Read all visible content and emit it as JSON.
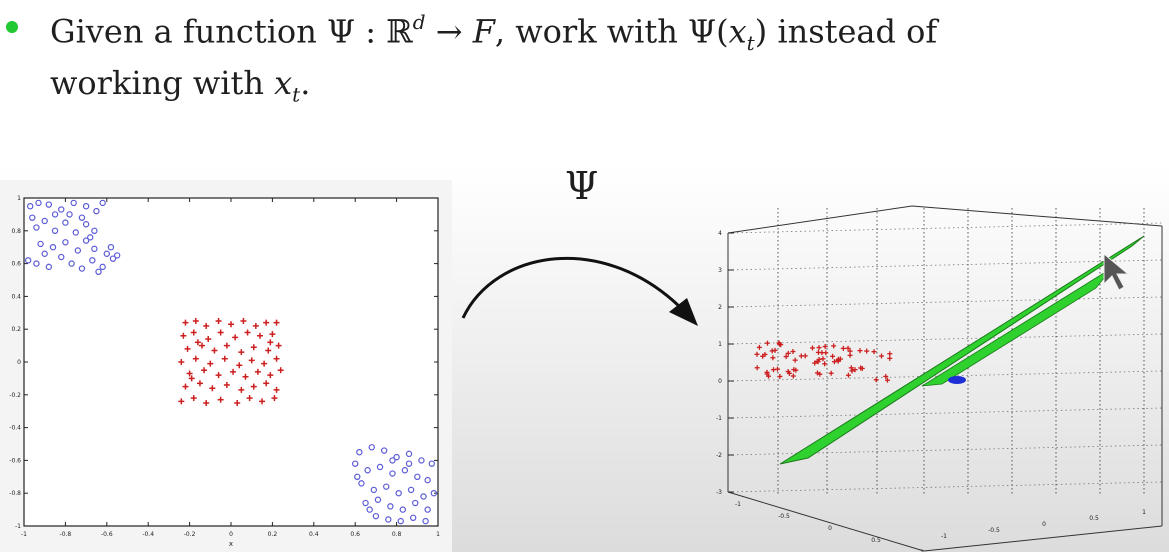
{
  "bullet": {
    "color": "#22c832",
    "line1": {
      "t1": "Given a function ",
      "psi": "Ψ",
      "t2": " : ",
      "R": "ℝ",
      "d": "d",
      "arrow": " → ",
      "F": "F",
      "t3": ", work with ",
      "psi2": "Ψ(",
      "x": "x",
      "t": "t",
      "close": ")",
      "t4": " instead of"
    },
    "line2": {
      "t1": "working with ",
      "x": "x",
      "t": "t",
      "dot": "."
    }
  },
  "mapping_label": "Ψ",
  "chart_data": [
    {
      "type": "scatter",
      "xlim": [
        -1,
        1
      ],
      "ylim": [
        -1,
        1
      ],
      "x_ticks": [
        "-1",
        "-0.8",
        "-0.6",
        "-0.4",
        "-0.2",
        "0",
        "0.2",
        "0.4",
        "0.6",
        "0.8",
        "1"
      ],
      "y_ticks": [
        "1",
        "0.8",
        "0.6",
        "0.4",
        "0.2",
        "0",
        "-0.2",
        "-0.4",
        "-0.6",
        "-0.8",
        "-1"
      ],
      "xlabel": "x",
      "series": [
        {
          "marker": "circle",
          "color": "#5b5bd6",
          "points": [
            [
              -0.97,
              0.95
            ],
            [
              -0.93,
              0.97
            ],
            [
              -0.88,
              0.96
            ],
            [
              -0.82,
              0.93
            ],
            [
              -0.76,
              0.97
            ],
            [
              -0.7,
              0.95
            ],
            [
              -0.65,
              0.92
            ],
            [
              -0.62,
              0.97
            ],
            [
              -0.94,
              0.82
            ],
            [
              -0.9,
              0.86
            ],
            [
              -0.85,
              0.8
            ],
            [
              -0.8,
              0.85
            ],
            [
              -0.75,
              0.79
            ],
            [
              -0.7,
              0.84
            ],
            [
              -0.66,
              0.8
            ],
            [
              -0.92,
              0.72
            ],
            [
              -0.86,
              0.7
            ],
            [
              -0.8,
              0.73
            ],
            [
              -0.74,
              0.68
            ],
            [
              -0.7,
              0.74
            ],
            [
              -0.66,
              0.69
            ],
            [
              -0.98,
              0.62
            ],
            [
              -0.94,
              0.6
            ],
            [
              -0.88,
              0.58
            ],
            [
              -0.82,
              0.64
            ],
            [
              -0.77,
              0.6
            ],
            [
              -0.72,
              0.57
            ],
            [
              -0.67,
              0.62
            ],
            [
              -0.62,
              0.58
            ],
            [
              -0.6,
              0.66
            ],
            [
              -0.57,
              0.63
            ],
            [
              -0.64,
              0.55
            ],
            [
              -0.9,
              0.66
            ],
            [
              -0.85,
              0.9
            ],
            [
              -0.78,
              0.9
            ],
            [
              -0.72,
              0.88
            ],
            [
              -0.68,
              0.76
            ],
            [
              -0.58,
              0.7
            ],
            [
              -0.55,
              0.65
            ],
            [
              -0.96,
              0.88
            ],
            [
              0.62,
              -0.55
            ],
            [
              0.68,
              -0.52
            ],
            [
              0.74,
              -0.54
            ],
            [
              0.8,
              -0.58
            ],
            [
              0.86,
              -0.56
            ],
            [
              0.92,
              -0.6
            ],
            [
              0.97,
              -0.62
            ],
            [
              0.6,
              -0.62
            ],
            [
              0.66,
              -0.66
            ],
            [
              0.72,
              -0.64
            ],
            [
              0.78,
              -0.68
            ],
            [
              0.84,
              -0.66
            ],
            [
              0.9,
              -0.7
            ],
            [
              0.95,
              -0.72
            ],
            [
              0.63,
              -0.74
            ],
            [
              0.69,
              -0.78
            ],
            [
              0.75,
              -0.76
            ],
            [
              0.81,
              -0.8
            ],
            [
              0.87,
              -0.78
            ],
            [
              0.93,
              -0.82
            ],
            [
              0.98,
              -0.8
            ],
            [
              0.65,
              -0.86
            ],
            [
              0.71,
              -0.84
            ],
            [
              0.77,
              -0.88
            ],
            [
              0.83,
              -0.9
            ],
            [
              0.89,
              -0.86
            ],
            [
              0.95,
              -0.9
            ],
            [
              0.7,
              -0.94
            ],
            [
              0.76,
              -0.96
            ],
            [
              0.82,
              -0.97
            ],
            [
              0.88,
              -0.95
            ],
            [
              0.94,
              -0.97
            ],
            [
              0.61,
              -0.7
            ],
            [
              0.67,
              -0.9
            ],
            [
              0.86,
              -0.62
            ],
            [
              0.78,
              -0.6
            ]
          ]
        },
        {
          "marker": "plus",
          "color": "#cc1f1f",
          "points": [
            [
              -0.22,
              0.24
            ],
            [
              -0.17,
              0.25
            ],
            [
              -0.12,
              0.22
            ],
            [
              -0.06,
              0.25
            ],
            [
              0.0,
              0.23
            ],
            [
              0.06,
              0.25
            ],
            [
              0.12,
              0.22
            ],
            [
              0.17,
              0.24
            ],
            [
              0.22,
              0.24
            ],
            [
              -0.23,
              0.16
            ],
            [
              -0.18,
              0.18
            ],
            [
              -0.11,
              0.14
            ],
            [
              -0.05,
              0.18
            ],
            [
              0.02,
              0.15
            ],
            [
              0.08,
              0.18
            ],
            [
              0.14,
              0.16
            ],
            [
              0.2,
              0.17
            ],
            [
              -0.21,
              0.08
            ],
            [
              -0.14,
              0.1
            ],
            [
              -0.08,
              0.07
            ],
            [
              -0.02,
              0.1
            ],
            [
              0.05,
              0.06
            ],
            [
              0.11,
              0.09
            ],
            [
              0.18,
              0.07
            ],
            [
              0.23,
              0.1
            ],
            [
              -0.24,
              0.0
            ],
            [
              -0.17,
              0.02
            ],
            [
              -0.1,
              -0.01
            ],
            [
              -0.03,
              0.02
            ],
            [
              0.04,
              -0.02
            ],
            [
              0.1,
              0.01
            ],
            [
              0.16,
              -0.01
            ],
            [
              0.22,
              0.02
            ],
            [
              -0.2,
              -0.07
            ],
            [
              -0.13,
              -0.05
            ],
            [
              -0.06,
              -0.08
            ],
            [
              0.01,
              -0.06
            ],
            [
              0.07,
              -0.09
            ],
            [
              0.13,
              -0.06
            ],
            [
              0.19,
              -0.08
            ],
            [
              0.24,
              -0.05
            ],
            [
              -0.22,
              -0.15
            ],
            [
              -0.15,
              -0.13
            ],
            [
              -0.09,
              -0.16
            ],
            [
              -0.02,
              -0.14
            ],
            [
              0.05,
              -0.17
            ],
            [
              0.11,
              -0.15
            ],
            [
              0.17,
              -0.13
            ],
            [
              0.22,
              -0.17
            ],
            [
              -0.24,
              -0.24
            ],
            [
              -0.18,
              -0.22
            ],
            [
              -0.12,
              -0.25
            ],
            [
              -0.05,
              -0.23
            ],
            [
              0.03,
              -0.25
            ],
            [
              0.09,
              -0.22
            ],
            [
              0.15,
              -0.24
            ],
            [
              0.21,
              -0.22
            ],
            [
              -0.16,
              0.12
            ],
            [
              0.19,
              0.12
            ],
            [
              -0.19,
              -0.1
            ]
          ]
        }
      ]
    },
    {
      "type": "scatter",
      "projection": "3d",
      "x_ticks": [
        "-1",
        "-0.5",
        "0",
        "0.5",
        "1"
      ],
      "y_ticks": [
        "-1",
        "-0.5",
        "0",
        "0.5",
        "1"
      ],
      "z_ticks": [
        "4",
        "3",
        "2",
        "1",
        "0",
        "-1",
        "-2",
        "-3"
      ],
      "zlim": [
        -3,
        4
      ],
      "plane_color": "#2ed12e",
      "series": [
        {
          "marker": "plus",
          "color": "#cc1f1f"
        },
        {
          "marker": "circle",
          "color": "#1f2fd6"
        }
      ]
    }
  ]
}
